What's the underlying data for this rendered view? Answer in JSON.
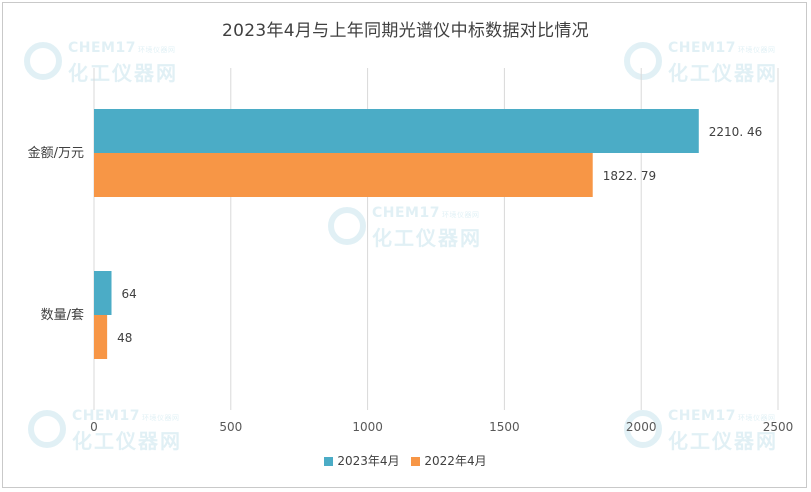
{
  "chart_data": {
    "type": "bar",
    "orientation": "horizontal",
    "title": "2023年4月与上年同期光谱仪中标数据对比情况",
    "categories": [
      "金额/万元",
      "数量/套"
    ],
    "series": [
      {
        "name": "2023年4月",
        "color": "#4bacc6",
        "values": [
          2210.46,
          64
        ],
        "labels": [
          "2210. 46",
          "64"
        ]
      },
      {
        "name": "2022年4月",
        "color": "#f79646",
        "values": [
          1822.79,
          48
        ],
        "labels": [
          "1822. 79",
          "48"
        ]
      }
    ],
    "xlim": [
      0,
      2500
    ],
    "xticks": [
      0,
      500,
      1000,
      1500,
      2000,
      2500
    ],
    "grid": true,
    "legend_position": "bottom"
  },
  "watermark": {
    "line1": "CHEM17",
    "line1_small": "环境仪器网",
    "line2": "化工仪器网"
  }
}
